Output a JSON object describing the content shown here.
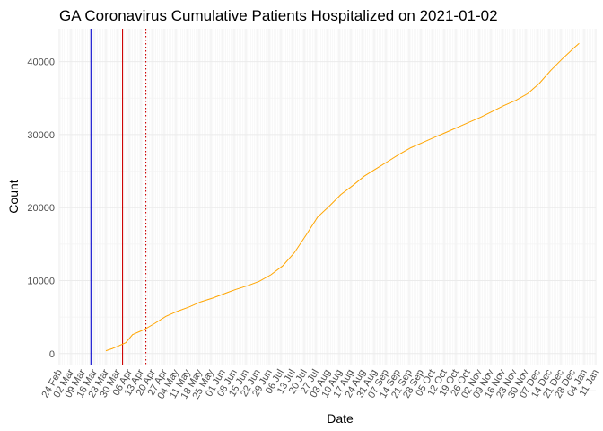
{
  "chart_data": {
    "type": "line",
    "title": "GA Coronavirus Cumulative Patients Hospitalized on 2021-01-02",
    "xlabel": "Date",
    "ylabel": "Count",
    "x_type": "date",
    "xlim": [
      "2020-02-24",
      "2021-01-11"
    ],
    "ylim": [
      -1500,
      44500
    ],
    "y_ticks": [
      0,
      10000,
      20000,
      30000,
      40000
    ],
    "y_tick_labels": [
      "0",
      "10000",
      "20000",
      "30000",
      "40000"
    ],
    "x_ticks": [
      "2020-02-24",
      "2020-03-02",
      "2020-03-09",
      "2020-03-16",
      "2020-03-23",
      "2020-03-30",
      "2020-04-06",
      "2020-04-13",
      "2020-04-20",
      "2020-04-27",
      "2020-05-04",
      "2020-05-11",
      "2020-05-18",
      "2020-05-25",
      "2020-06-01",
      "2020-06-08",
      "2020-06-15",
      "2020-06-22",
      "2020-06-29",
      "2020-07-06",
      "2020-07-13",
      "2020-07-20",
      "2020-07-27",
      "2020-08-03",
      "2020-08-10",
      "2020-08-17",
      "2020-08-24",
      "2020-08-31",
      "2020-09-07",
      "2020-09-14",
      "2020-09-21",
      "2020-09-28",
      "2020-10-05",
      "2020-10-12",
      "2020-10-19",
      "2020-10-26",
      "2020-11-02",
      "2020-11-09",
      "2020-11-16",
      "2020-11-23",
      "2020-11-30",
      "2020-12-07",
      "2020-12-14",
      "2020-12-21",
      "2020-12-28",
      "2021-01-04",
      "2021-01-11"
    ],
    "x_tick_labels": [
      "24 Feb",
      "02 Mar",
      "09 Mar",
      "16 Mar",
      "23 Mar",
      "30 Mar",
      "06 Apr",
      "13 Apr",
      "20 Apr",
      "27 Apr",
      "04 May",
      "11 May",
      "18 May",
      "25 May",
      "01 Jun",
      "08 Jun",
      "15 Jun",
      "22 Jun",
      "29 Jun",
      "06 Jul",
      "13 Jul",
      "20 Jul",
      "27 Jul",
      "03 Aug",
      "10 Aug",
      "17 Aug",
      "24 Aug",
      "31 Aug",
      "07 Sep",
      "14 Sep",
      "21 Sep",
      "28 Sep",
      "05 Oct",
      "12 Oct",
      "19 Oct",
      "26 Oct",
      "02 Nov",
      "09 Nov",
      "16 Nov",
      "23 Nov",
      "30 Nov",
      "07 Dec",
      "14 Dec",
      "21 Dec",
      "28 Dec",
      "04 Jan",
      "11 Jan"
    ],
    "grid": true,
    "vlines": [
      {
        "x": "2020-03-14",
        "color": "#0000cc",
        "style": "solid"
      },
      {
        "x": "2020-04-02",
        "color": "#cc0000",
        "style": "solid"
      },
      {
        "x": "2020-04-16",
        "color": "#cc0000",
        "style": "dotted"
      }
    ],
    "series": [
      {
        "color": "#ffa500",
        "points": [
          [
            "2020-03-23",
            400
          ],
          [
            "2020-03-27",
            700
          ],
          [
            "2020-03-31",
            1100
          ],
          [
            "2020-04-04",
            1500
          ],
          [
            "2020-04-08",
            2600
          ],
          [
            "2020-04-15",
            3300
          ],
          [
            "2020-04-21",
            4100
          ],
          [
            "2020-04-28",
            5100
          ],
          [
            "2020-05-05",
            5800
          ],
          [
            "2020-05-12",
            6400
          ],
          [
            "2020-05-19",
            7100
          ],
          [
            "2020-05-26",
            7600
          ],
          [
            "2020-06-02",
            8200
          ],
          [
            "2020-06-09",
            8800
          ],
          [
            "2020-06-16",
            9300
          ],
          [
            "2020-06-23",
            9900
          ],
          [
            "2020-06-30",
            10800
          ],
          [
            "2020-07-07",
            12000
          ],
          [
            "2020-07-14",
            13800
          ],
          [
            "2020-07-21",
            16200
          ],
          [
            "2020-07-28",
            18700
          ],
          [
            "2020-08-04",
            20200
          ],
          [
            "2020-08-11",
            21800
          ],
          [
            "2020-08-18",
            23000
          ],
          [
            "2020-08-25",
            24300
          ],
          [
            "2020-09-01",
            25300
          ],
          [
            "2020-09-08",
            26300
          ],
          [
            "2020-09-15",
            27300
          ],
          [
            "2020-09-22",
            28200
          ],
          [
            "2020-09-29",
            28900
          ],
          [
            "2020-10-06",
            29600
          ],
          [
            "2020-10-13",
            30300
          ],
          [
            "2020-10-20",
            31000
          ],
          [
            "2020-10-27",
            31700
          ],
          [
            "2020-11-03",
            32400
          ],
          [
            "2020-11-10",
            33200
          ],
          [
            "2020-11-17",
            34000
          ],
          [
            "2020-11-24",
            34700
          ],
          [
            "2020-12-01",
            35600
          ],
          [
            "2020-12-08",
            37000
          ],
          [
            "2020-12-15",
            38800
          ],
          [
            "2020-12-22",
            40400
          ],
          [
            "2020-12-29",
            41900
          ],
          [
            "2021-01-01",
            42500
          ]
        ]
      }
    ]
  }
}
